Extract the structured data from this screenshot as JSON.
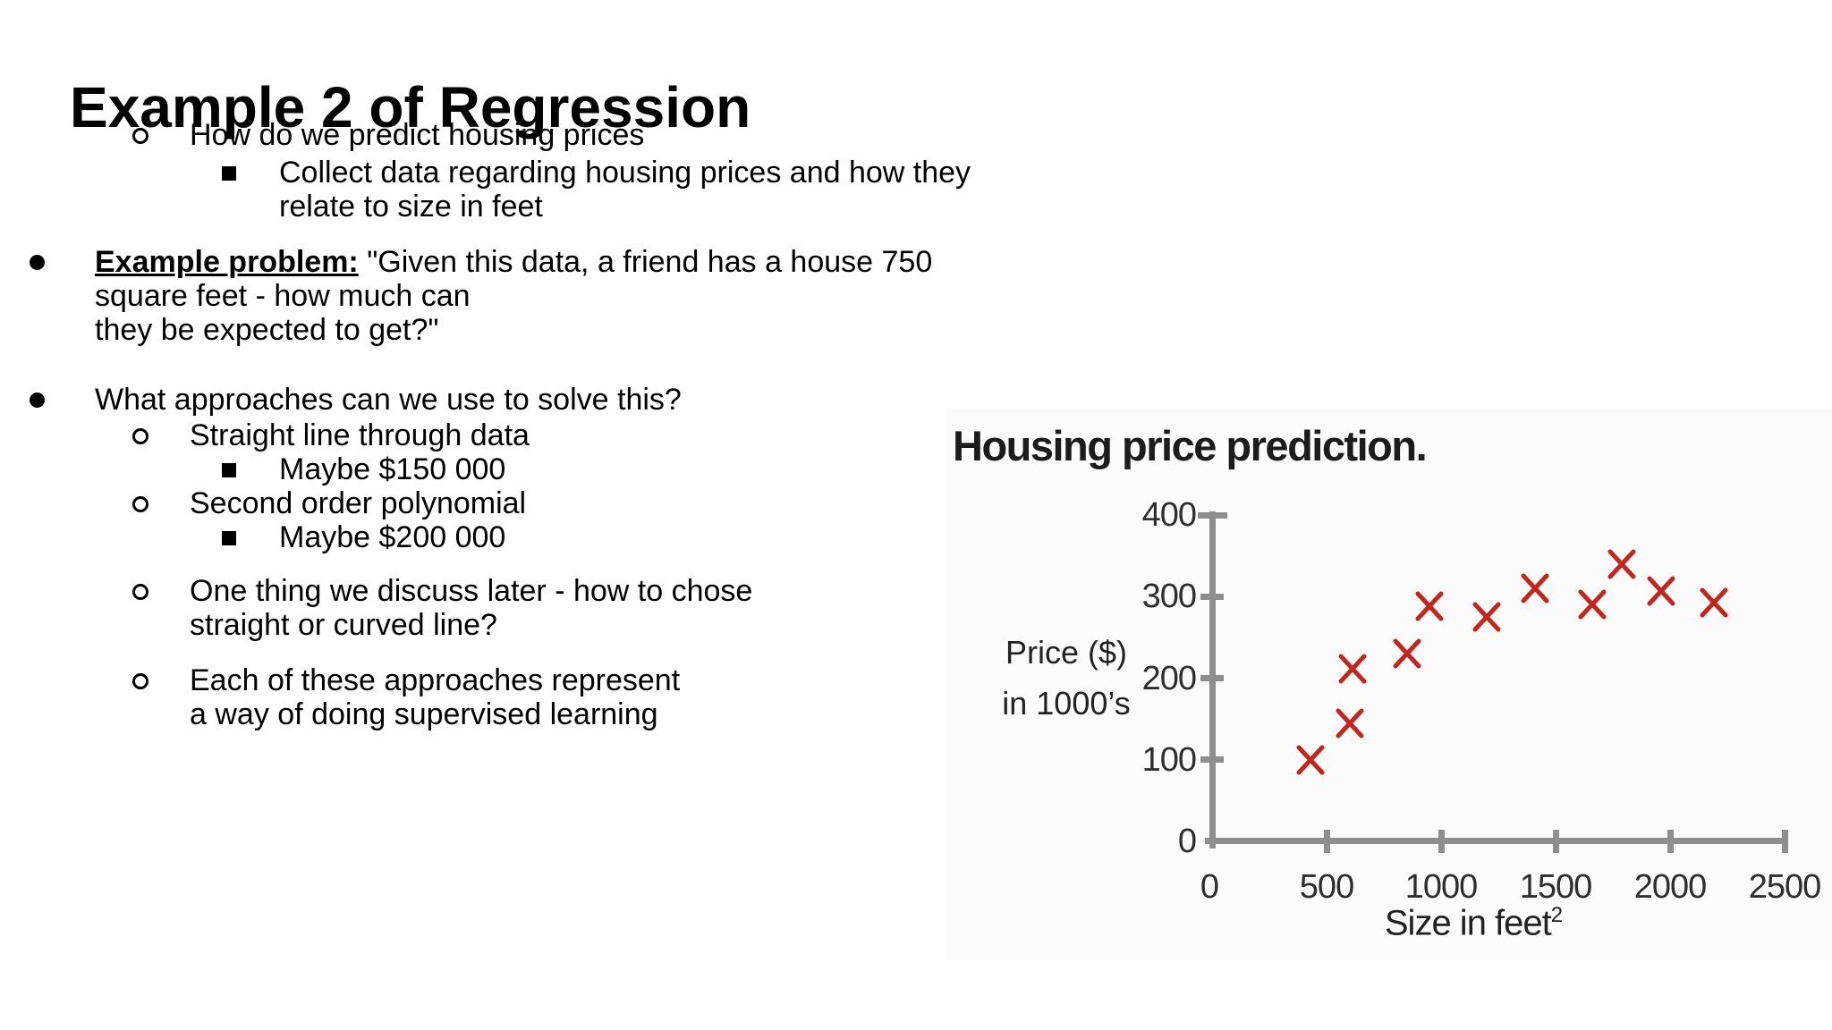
{
  "slide": {
    "title": "Example 2 of Regression",
    "bullets": [
      {
        "level": 2,
        "marker": "circle",
        "text": "How do we predict housing prices"
      },
      {
        "level": 3,
        "marker": "square",
        "text": "Collect data regarding housing prices and how they relate to size in feet"
      },
      {
        "level": 1,
        "marker": "disc",
        "lead": "Example problem:",
        "text": " \"Given this data, a friend has a house 750 square feet - how much can\nthey be expected to get?\""
      },
      {
        "level": 1,
        "marker": "disc",
        "text": "What approaches can we use to solve this?"
      },
      {
        "level": 2,
        "marker": "circle",
        "text": "Straight line through data"
      },
      {
        "level": 3,
        "marker": "square",
        "text": "Maybe $150 000"
      },
      {
        "level": 2,
        "marker": "circle",
        "text": "Second order polynomial"
      },
      {
        "level": 3,
        "marker": "square",
        "text": "Maybe $200 000"
      },
      {
        "level": 2,
        "marker": "circle",
        "text": "One thing we discuss later - how to chose\nstraight or curved line?"
      },
      {
        "level": 2,
        "marker": "circle",
        "text": "Each of these approaches represent\n a way of doing supervised learning"
      }
    ]
  },
  "chart_data": {
    "type": "scatter",
    "title": "Housing price prediction.",
    "ylabel_line1": "Price ($)",
    "ylabel_line2": "in 1000’s",
    "xlabel_base": "Size in feet",
    "xlabel_sup": "2",
    "xlim": [
      0,
      2500
    ],
    "ylim": [
      0,
      400
    ],
    "x_ticks": [
      0,
      500,
      1000,
      1500,
      2000,
      2500
    ],
    "y_ticks": [
      0,
      100,
      200,
      300,
      400
    ],
    "grid": false,
    "legend": "none",
    "marker": "x",
    "marker_color": "#c1271d",
    "axis_color": "#8e8e8e",
    "points": [
      {
        "x": 430,
        "y": 100
      },
      {
        "x": 600,
        "y": 145
      },
      {
        "x": 615,
        "y": 212
      },
      {
        "x": 850,
        "y": 230
      },
      {
        "x": 950,
        "y": 288
      },
      {
        "x": 1200,
        "y": 275
      },
      {
        "x": 1410,
        "y": 310
      },
      {
        "x": 1660,
        "y": 290
      },
      {
        "x": 1790,
        "y": 340
      },
      {
        "x": 1960,
        "y": 307
      },
      {
        "x": 2190,
        "y": 293
      }
    ]
  }
}
